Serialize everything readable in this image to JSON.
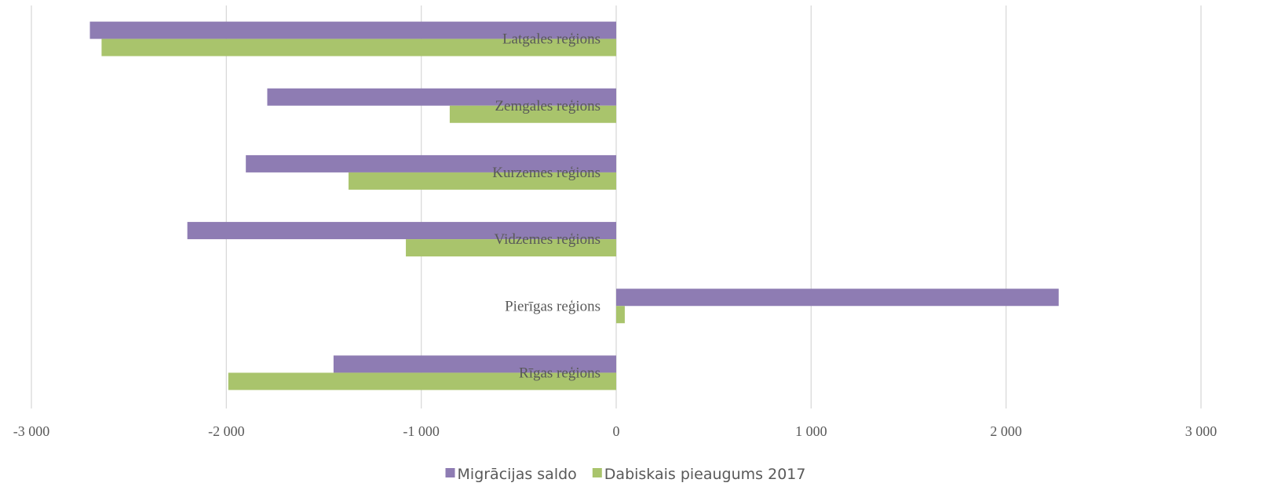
{
  "chart_data": {
    "type": "bar",
    "orientation": "horizontal",
    "categories": [
      "Latgales reģions",
      "Zemgales reģions",
      "Kurzemes reģions",
      "Vidzemes reģions",
      "Pierīgas reģions",
      "Rīgas reģions"
    ],
    "series": [
      {
        "name": "Migrācijas saldo",
        "color": "#8e7cb3",
        "values": [
          -2700,
          -1790,
          -1900,
          -2200,
          2270,
          -1450
        ]
      },
      {
        "name": "Dabiskais pieaugums 2017",
        "color": "#a9c46c",
        "values": [
          -2640,
          -854,
          -1373,
          -1079,
          44,
          -1990
        ]
      }
    ],
    "xlim": [
      -3000,
      3000
    ],
    "xticks": [
      {
        "value": -3000,
        "label": "-3 000"
      },
      {
        "value": -2000,
        "label": "-2 000"
      },
      {
        "value": -1000,
        "label": "-1 000"
      },
      0,
      {
        "value": 1000,
        "label": "1 000"
      },
      {
        "value": 2000,
        "label": "2 000"
      },
      {
        "value": 3000,
        "label": "3 000"
      }
    ],
    "grid": true,
    "legend": "bottom"
  }
}
